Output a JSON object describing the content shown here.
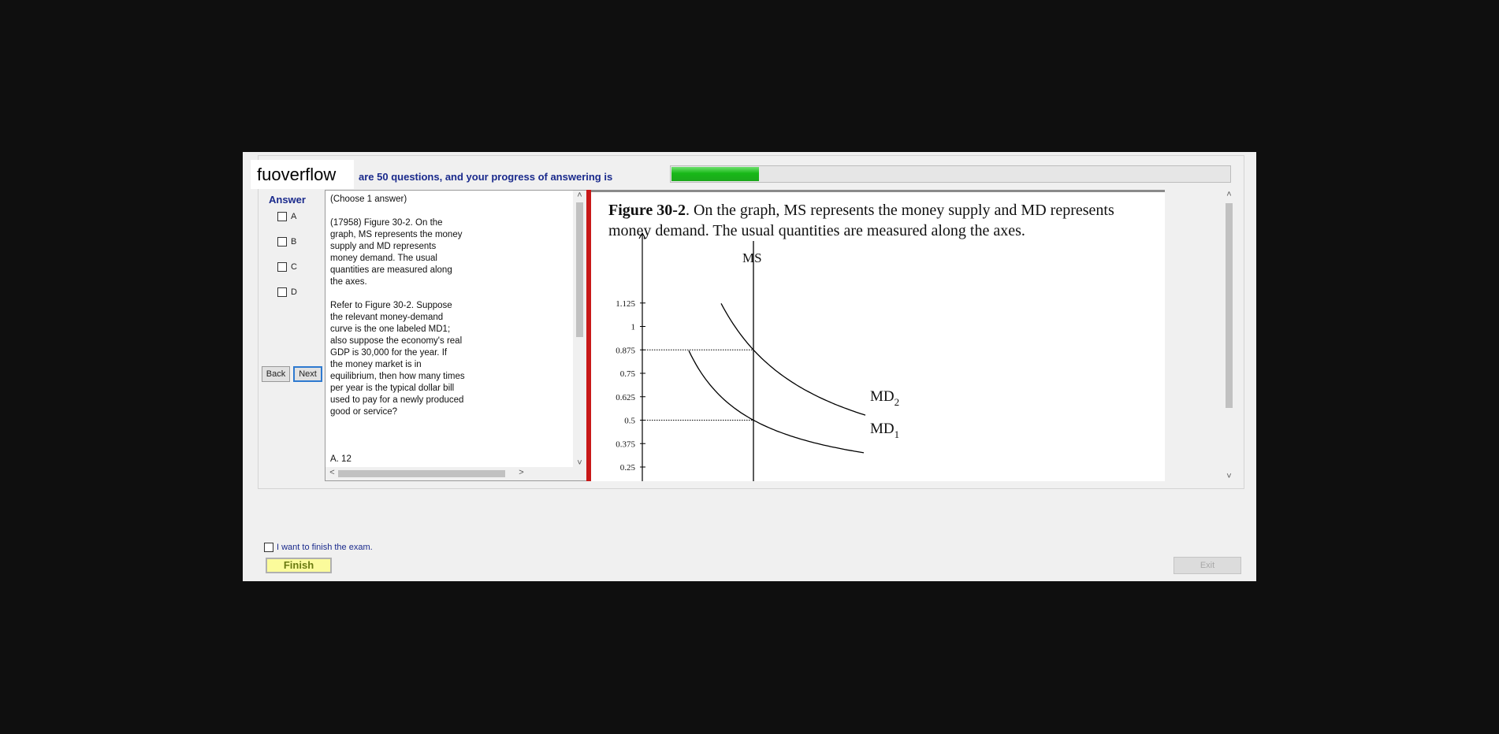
{
  "watermark": "fuoverflow",
  "progress": {
    "text": "are 50 questions, and your progress of answering is",
    "fraction": 0.157
  },
  "answer": {
    "title": "Answer",
    "options": [
      "A",
      "B",
      "C",
      "D"
    ],
    "back_label": "Back",
    "next_label": "Next"
  },
  "question": {
    "instruction": "(Choose 1 answer)",
    "paragraph1": "(17958)  Figure 30-2. On the\ngraph, MS represents the money\nsupply and MD represents\nmoney demand.  The usual\nquantities are measured along\nthe axes.",
    "paragraph2": "Refer to Figure 30-2. Suppose\nthe relevant money-demand\ncurve is the one labeled MD1;\nalso suppose the economy's real\nGDP is 30,000 for the year.  If\nthe money market is in\nequilibrium, then how many times\nper year is the typical dollar bill\nused to pay for a newly produced\ngood or service?",
    "answer_a": "A.  12"
  },
  "figure": {
    "caption_bold": "Figure 30-2",
    "caption_rest": ".   On the graph, MS represents the money supply and MD represents money demand.   The usual quantities are measured along the axes."
  },
  "chart_data": {
    "type": "line",
    "title": "",
    "xlabel": "",
    "ylabel": "",
    "y_ticks": [
      "1.125",
      "1",
      "0.875",
      "0.75",
      "0.625",
      "0.5",
      "0.375",
      "0.25"
    ],
    "y_values": [
      1.125,
      1,
      0.875,
      0.75,
      0.625,
      0.5,
      0.375,
      0.25
    ],
    "series": [
      {
        "name": "MS",
        "shape": "vertical"
      },
      {
        "name": "MD",
        "subscript": "2",
        "shape": "decreasing-convex"
      },
      {
        "name": "MD",
        "subscript": "1",
        "shape": "decreasing-convex"
      }
    ],
    "intersections_y": [
      0.875,
      0.5
    ]
  },
  "footer": {
    "finish_checkbox_label": "I want to finish the exam.",
    "finish_label": "Finish",
    "exit_label": "Exit"
  }
}
